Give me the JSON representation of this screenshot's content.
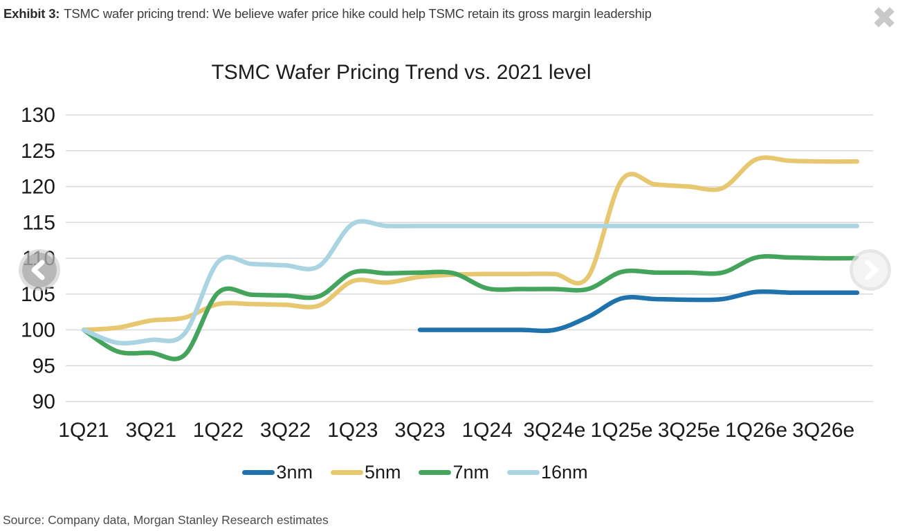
{
  "header": {
    "exhibit_label": "Exhibit 3:",
    "caption": "TSMC wafer pricing trend: We believe wafer price hike could help TSMC retain its gross margin leadership"
  },
  "icons": {
    "close": "✖"
  },
  "source": "Source: Company data, Morgan Stanley Research estimates",
  "chart_data": {
    "type": "line",
    "title": "TSMC Wafer Pricing Trend vs. 2021 level",
    "xlabel": "",
    "ylabel": "",
    "ylim": [
      90,
      130
    ],
    "y_ticks": [
      130,
      125,
      120,
      115,
      110,
      105,
      100,
      95,
      90
    ],
    "grid": "horizontal-only",
    "grid_color": "#d9d9d9",
    "legend_position": "bottom",
    "x": [
      "1Q21",
      "2Q21",
      "3Q21",
      "4Q21",
      "1Q22",
      "2Q22",
      "3Q22",
      "4Q22",
      "1Q23",
      "2Q23",
      "3Q23",
      "4Q23",
      "1Q24",
      "2Q24",
      "3Q24e",
      "4Q24e",
      "1Q25e",
      "2Q25e",
      "3Q25e",
      "4Q25e",
      "1Q26e",
      "2Q26e",
      "3Q26e",
      "4Q26e"
    ],
    "x_tick_labels": [
      "1Q21",
      "3Q21",
      "1Q22",
      "3Q22",
      "1Q23",
      "3Q23",
      "1Q24",
      "3Q24e",
      "1Q25e",
      "3Q25e",
      "1Q26e",
      "3Q26e"
    ],
    "series": [
      {
        "name": "3nm",
        "color": "#1f72ab",
        "values": [
          null,
          null,
          null,
          null,
          null,
          null,
          null,
          null,
          null,
          null,
          100,
          100,
          100,
          100,
          100,
          101.8,
          104.4,
          104.3,
          104.2,
          104.3,
          105.3,
          105.2,
          105.2,
          105.2
        ]
      },
      {
        "name": "5nm",
        "color": "#e8c771",
        "values": [
          100,
          100.3,
          101.3,
          101.7,
          103.6,
          103.6,
          103.5,
          103.4,
          106.8,
          106.6,
          107.4,
          107.7,
          107.8,
          107.8,
          107.8,
          107.4,
          120.9,
          120.3,
          120,
          119.8,
          123.8,
          123.6,
          123.5,
          123.5
        ]
      },
      {
        "name": "7nm",
        "color": "#45a45c",
        "values": [
          100,
          97,
          96.8,
          96.5,
          105.2,
          104.9,
          104.8,
          104.7,
          108,
          107.9,
          108,
          107.9,
          105.8,
          105.7,
          105.7,
          105.7,
          108.1,
          108,
          108,
          108,
          110.1,
          110.1,
          110,
          110
        ]
      },
      {
        "name": "16nm",
        "color": "#abd4e3",
        "values": [
          100,
          98.2,
          98.6,
          99.5,
          109.5,
          109.2,
          109,
          108.9,
          114.8,
          114.5,
          114.5,
          114.5,
          114.5,
          114.5,
          114.5,
          114.5,
          114.5,
          114.5,
          114.5,
          114.5,
          114.5,
          114.5,
          114.5,
          114.5
        ]
      }
    ]
  }
}
